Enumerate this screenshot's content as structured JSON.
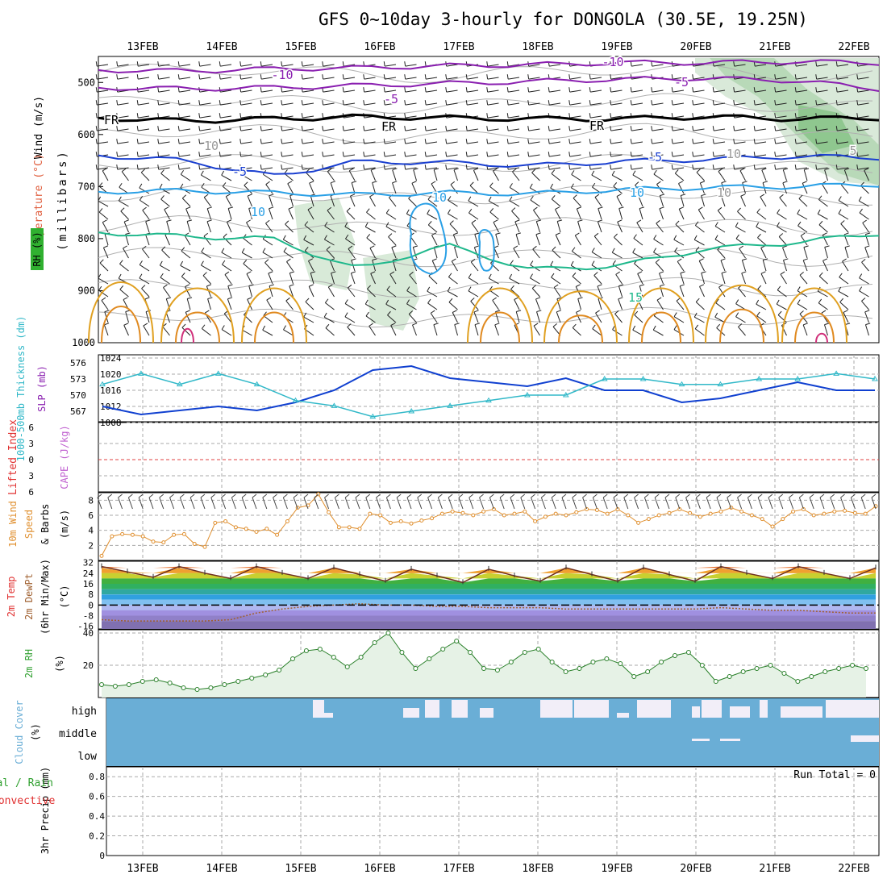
{
  "title": "GFS 0~10day 3-hourly for DONGOLA (30.5E, 19.25N)",
  "colors": {
    "temp_neg10": "#8a1fb0",
    "temp_neg5": "#8a1fb0",
    "freezing": "#000000",
    "temp_5": "#1a3fd0",
    "temp_10": "#2aa0e6",
    "temp_15": "#1fb88c",
    "temp_20": "#e0a020",
    "temp_25": "#e08a20",
    "temp_30": "#d0307a",
    "slp": "#1040d0",
    "thickness": "#30b8c8",
    "wind10m": "#e09030",
    "rh": "#30a030",
    "cloud": "#6aaed6",
    "precip_total": "#30a030",
    "precip_conv": "#e03030"
  },
  "chart_data": [
    {
      "type": "line",
      "panel": "Wind / Temperature / RH cross-section",
      "ylabel": "(millibars)",
      "side_labels": {
        "wind": "Wind (m/s)",
        "temp": "Temperature (°C)",
        "rh": "RH (%)"
      },
      "x": [
        "13FEB",
        "14FEB",
        "15FEB",
        "16FEB",
        "17FEB",
        "18FEB",
        "19FEB",
        "20FEB",
        "21FEB",
        "22FEB"
      ],
      "yticks": [
        500,
        600,
        700,
        800,
        900,
        1000
      ],
      "ylim": [
        450,
        1000
      ],
      "contour_labels": [
        "-10",
        "-10",
        "-5",
        "-5",
        "FR",
        "FR",
        "FR",
        "-5",
        "-5",
        "10",
        "10",
        "10",
        "10",
        "10",
        "10",
        "15",
        "15",
        "5"
      ],
      "series": [
        {
          "name": "-10",
          "values": [
            476,
            478,
            474,
            472,
            468,
            466,
            462,
            462,
            460,
            462
          ]
        },
        {
          "name": "-5",
          "values": [
            510,
            512,
            510,
            506,
            502,
            498,
            494,
            492,
            496,
            512
          ]
        },
        {
          "name": "FR",
          "values": [
            568,
            574,
            570,
            566,
            568,
            570,
            570,
            566,
            570,
            568
          ]
        },
        {
          "name": "-5",
          "values": [
            640,
            650,
            680,
            652,
            654,
            660,
            652,
            648,
            642,
            644
          ]
        },
        {
          "name": "10",
          "values": [
            710,
            708,
            712,
            716,
            712,
            714,
            706,
            702,
            700,
            696
          ]
        },
        {
          "name": "15",
          "values": [
            788,
            796,
            800,
            860,
            812,
            860,
            852,
            820,
            808,
            790
          ]
        }
      ]
    },
    {
      "type": "line",
      "panel": "Thickness / SLP",
      "ylabel_left": "1000-500mb Thickness (dm)",
      "ylabel_right": "SLP (mb)",
      "yticks_left": [
        "576",
        "573",
        "570",
        "567"
      ],
      "yticks_right": [
        "1024",
        "1020",
        "1016",
        "1012",
        "1008"
      ],
      "series": [
        {
          "name": "SLP",
          "values": [
            1012,
            1010,
            1011,
            1012,
            1011,
            1013,
            1016,
            1021,
            1022,
            1019,
            1018,
            1017,
            1019,
            1016,
            1016,
            1013,
            1014,
            1016,
            1018,
            1016,
            1016
          ]
        },
        {
          "name": "Thickness",
          "values": [
            572,
            574,
            572,
            574,
            572,
            569,
            568,
            566,
            567,
            568,
            569,
            570,
            570,
            573,
            573,
            572,
            572,
            573,
            573,
            574,
            573
          ]
        }
      ]
    },
    {
      "type": "line",
      "panel": "CAPE / Lifted Index",
      "ylabel_left": "Lifted Index",
      "ylabel_right": "CAPE (J/kg)",
      "yticks": [
        "6",
        "3",
        "0",
        "3",
        "6"
      ],
      "lifted_index": [
        0,
        0,
        0,
        0,
        0,
        0,
        0,
        0,
        0,
        0
      ]
    },
    {
      "type": "line",
      "panel": "10m Wind Speed & Barbs",
      "ylabel": "10m Wind Speed & Barbs (m/s)",
      "yticks": [
        "8",
        "6",
        "4",
        "2"
      ],
      "ylim": [
        0,
        9
      ],
      "values": [
        0.6,
        3.2,
        3.5,
        3.4,
        3.2,
        2.5,
        2.4,
        3.4,
        3.5,
        2.2,
        1.8,
        5.0,
        5.2,
        4.4,
        4.2,
        3.8,
        4.2,
        3.4,
        5.2,
        7.0,
        7.3,
        8.8,
        6.4,
        4.4,
        4.4,
        4.2,
        6.2,
        6.0,
        5.0,
        5.2,
        4.9,
        5.3,
        5.6,
        6.2,
        6.5,
        6.3,
        6.0,
        6.5,
        6.8,
        6.0,
        6.2,
        6.5,
        5.2,
        5.8,
        6.2,
        6.0,
        6.4,
        6.8,
        6.7,
        6.2,
        6.8,
        6.0,
        5.0,
        5.5,
        6.0,
        6.3,
        6.8,
        6.3,
        5.8,
        6.2,
        6.5,
        7.0,
        6.5,
        6.0,
        5.5,
        4.5,
        5.5,
        6.5,
        6.8,
        6.0,
        6.2,
        6.5,
        6.6,
        6.3,
        6.2,
        7.2
      ]
    },
    {
      "type": "area",
      "panel": "2m Temp / 2m DewPt",
      "ylabel": "2m Temp 2m DewPt (6hr Min/Max) (°C)",
      "yticks": [
        "32",
        "24",
        "16",
        "8",
        "0",
        "-8",
        "-16"
      ],
      "ylim": [
        -18,
        33
      ],
      "temp": [
        29,
        25,
        21,
        29,
        24,
        20,
        29,
        24,
        20,
        28,
        23,
        18,
        27,
        22,
        17,
        27,
        22,
        18,
        28,
        23,
        18,
        28,
        23,
        18,
        29,
        24,
        20,
        29,
        24,
        20,
        28
      ],
      "dewpt": [
        -11,
        -12,
        -12,
        -12,
        -12,
        -11,
        -6,
        -3,
        -1,
        0,
        1,
        0,
        0,
        -1,
        -1,
        -2,
        -2,
        -2,
        -3,
        -3,
        -3,
        -3,
        -3,
        -3,
        -2,
        -3,
        -4,
        -4,
        -5,
        -6,
        -6
      ]
    },
    {
      "type": "area",
      "panel": "2m RH",
      "ylabel": "2m RH (%)",
      "yticks": [
        "40",
        "20"
      ],
      "ylim": [
        0,
        42
      ],
      "values": [
        8,
        7,
        8,
        10,
        11,
        9,
        6,
        5,
        6,
        8,
        10,
        12,
        14,
        17,
        24,
        29,
        30,
        25,
        19,
        25,
        34,
        40,
        28,
        18,
        24,
        30,
        35,
        28,
        18,
        17,
        22,
        28,
        30,
        22,
        16,
        18,
        22,
        24,
        21,
        13,
        16,
        22,
        26,
        28,
        20,
        10,
        13,
        16,
        18,
        20,
        15,
        10,
        13,
        16,
        18,
        20,
        18
      ]
    },
    {
      "type": "bar",
      "panel": "Cloud Cover",
      "ylabel": "Cloud Cover (%)",
      "levels": [
        "high",
        "middle",
        "low"
      ]
    },
    {
      "type": "bar",
      "panel": "3hr Precip",
      "ylabel": "3hr Precip (mm)",
      "ylabel_left": "Total / Rain Convective",
      "yticks": [
        "0.8",
        "0.6",
        "0.4",
        "0.2",
        "0"
      ],
      "ylim": [
        0,
        0.9
      ],
      "run_total_label": "Run Total = 0",
      "values": []
    }
  ]
}
